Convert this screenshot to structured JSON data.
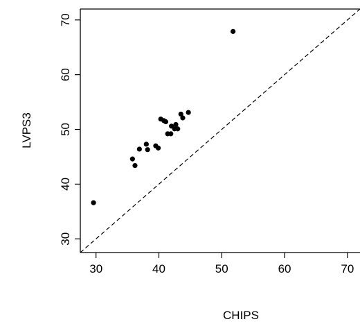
{
  "chart_data": {
    "type": "scatter",
    "title": "",
    "xlabel": "CHIPS",
    "ylabel": "LVPS3",
    "xlim": [
      27.5,
      72
    ],
    "ylim": [
      27.5,
      72
    ],
    "xticks": [
      "30",
      "40",
      "50",
      "60",
      "70"
    ],
    "yticks": [
      "30",
      "40",
      "50",
      "60",
      "70"
    ],
    "reference_line": "y = x (dashed)",
    "points": [
      {
        "x": 29.6,
        "y": 36.6
      },
      {
        "x": 35.8,
        "y": 44.6
      },
      {
        "x": 36.2,
        "y": 43.4
      },
      {
        "x": 36.9,
        "y": 46.4
      },
      {
        "x": 38.0,
        "y": 47.3
      },
      {
        "x": 38.2,
        "y": 46.3
      },
      {
        "x": 39.5,
        "y": 47.0
      },
      {
        "x": 39.9,
        "y": 46.6
      },
      {
        "x": 40.3,
        "y": 51.9
      },
      {
        "x": 40.8,
        "y": 51.6
      },
      {
        "x": 41.1,
        "y": 51.4
      },
      {
        "x": 41.4,
        "y": 49.2
      },
      {
        "x": 41.9,
        "y": 49.2
      },
      {
        "x": 42.0,
        "y": 50.6
      },
      {
        "x": 42.5,
        "y": 50.1
      },
      {
        "x": 42.7,
        "y": 50.9
      },
      {
        "x": 43.0,
        "y": 50.1
      },
      {
        "x": 43.5,
        "y": 52.8
      },
      {
        "x": 43.8,
        "y": 52.1
      },
      {
        "x": 44.7,
        "y": 53.1
      },
      {
        "x": 51.8,
        "y": 67.9
      }
    ]
  }
}
